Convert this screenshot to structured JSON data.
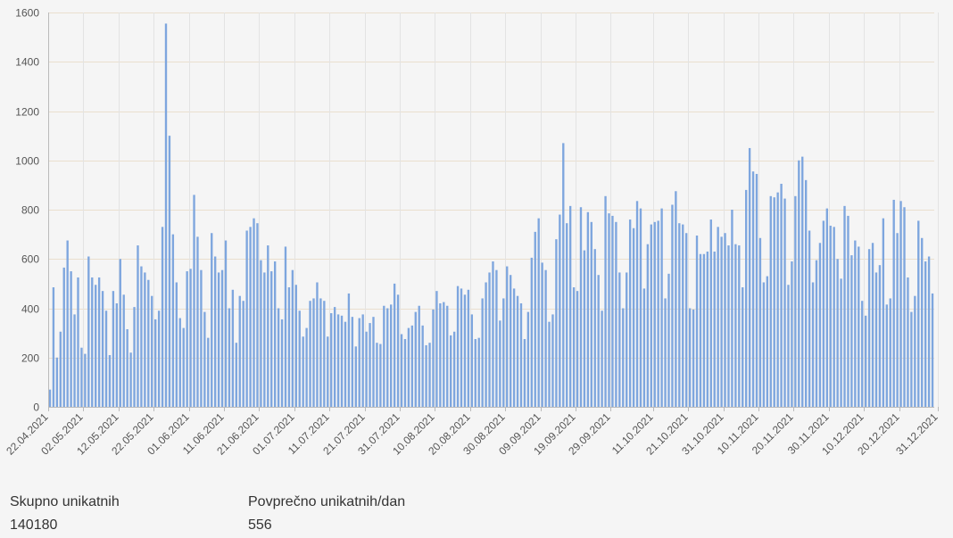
{
  "chart_data": {
    "type": "bar",
    "ylim": [
      0,
      1600
    ],
    "yticks": [
      0,
      200,
      400,
      600,
      800,
      1000,
      1200,
      1400,
      1600
    ],
    "x_start": "22.04.2021",
    "x_end": "31.12.2021",
    "xtick_labels": [
      "22.04.2021",
      "02.05.2021",
      "12.05.2021",
      "22.05.2021",
      "01.06.2021",
      "11.06.2021",
      "21.06.2021",
      "01.07.2021",
      "11.07.2021",
      "21.07.2021",
      "31.07.2021",
      "10.08.2021",
      "20.08.2021",
      "30.08.2021",
      "09.09.2021",
      "19.09.2021",
      "29.09.2021",
      "11.10.2021",
      "21.10.2021",
      "31.10.2021",
      "10.11.2021",
      "20.11.2021",
      "30.11.2021",
      "10.12.2021",
      "20.12.2021",
      "31.12.2021"
    ],
    "values": [
      70,
      485,
      200,
      305,
      565,
      675,
      550,
      375,
      525,
      240,
      215,
      610,
      525,
      495,
      525,
      470,
      390,
      210,
      470,
      420,
      600,
      455,
      315,
      220,
      405,
      655,
      570,
      545,
      515,
      450,
      355,
      390,
      730,
      1555,
      1100,
      700,
      505,
      360,
      320,
      550,
      560,
      860,
      690,
      555,
      385,
      280,
      705,
      610,
      545,
      555,
      675,
      400,
      475,
      260,
      450,
      430,
      715,
      730,
      765,
      745,
      595,
      545,
      655,
      550,
      590,
      400,
      355,
      650,
      485,
      555,
      495,
      390,
      285,
      320,
      430,
      440,
      505,
      440,
      430,
      285,
      380,
      405,
      375,
      370,
      345,
      460,
      365,
      245,
      360,
      375,
      305,
      340,
      365,
      260,
      255,
      410,
      400,
      415,
      500,
      455,
      295,
      275,
      320,
      330,
      385,
      410,
      330,
      250,
      260,
      395,
      470,
      420,
      425,
      410,
      290,
      305,
      490,
      480,
      455,
      475,
      375,
      275,
      280,
      440,
      505,
      545,
      590,
      555,
      350,
      440,
      570,
      535,
      480,
      450,
      420,
      275,
      385,
      605,
      710,
      765,
      585,
      555,
      345,
      375,
      680,
      780,
      1070,
      745,
      815,
      485,
      470,
      810,
      635,
      790,
      750,
      640,
      535,
      390,
      855,
      785,
      775,
      750,
      545,
      400,
      545,
      760,
      725,
      835,
      805,
      480,
      660,
      740,
      750,
      755,
      805,
      440,
      540,
      820,
      875,
      745,
      740,
      705,
      400,
      395,
      695,
      620,
      620,
      630,
      760,
      630,
      730,
      690,
      705,
      655,
      800,
      660,
      655,
      485,
      880,
      1050,
      955,
      945,
      685,
      505,
      530,
      855,
      850,
      870,
      905,
      845,
      495,
      590,
      855,
      1000,
      1015,
      920,
      715,
      505,
      595,
      665,
      755,
      805,
      735,
      730,
      600,
      520,
      815,
      775,
      615,
      675,
      650,
      430,
      370,
      640,
      665,
      545,
      575,
      765,
      415,
      440,
      840,
      705,
      835,
      810,
      525,
      385,
      450,
      755,
      685,
      590,
      610,
      460
    ]
  },
  "stats": {
    "total_label": "Skupno unikatnih",
    "total_value": "140180",
    "avg_label": "Povprečno unikatnih/dan",
    "avg_value": "556"
  },
  "colors": {
    "bar": "#7ea6de",
    "background": "#f5f5f5"
  }
}
